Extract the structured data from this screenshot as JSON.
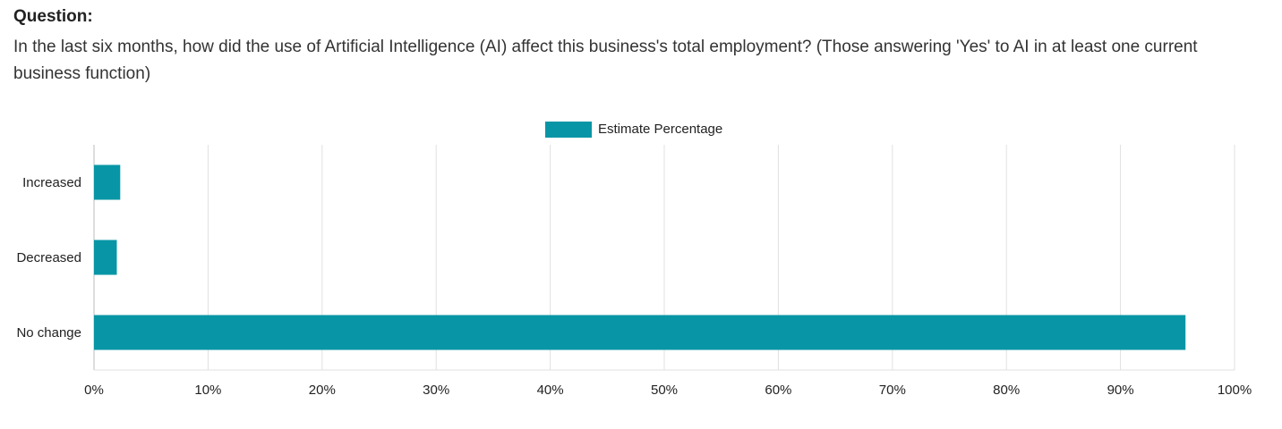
{
  "question": {
    "heading": "Question:",
    "text": "In the last six months, how did the use of Artificial Intelligence (AI) affect this business's total employment? (Those answering 'Yes' to AI in at least one current business function)"
  },
  "colors": {
    "bar": "#0896a6",
    "grid": "#e0e0e0",
    "axis": "#bbbbbb",
    "text": "#222222"
  },
  "chart_data": {
    "type": "bar",
    "orientation": "horizontal",
    "categories": [
      "Increased",
      "Decreased",
      "No change"
    ],
    "series": [
      {
        "name": "Estimate Percentage",
        "values": [
          2.3,
          2.0,
          95.7
        ]
      }
    ],
    "xlim": [
      0,
      100
    ],
    "xticks": [
      "0%",
      "10%",
      "20%",
      "30%",
      "40%",
      "50%",
      "60%",
      "70%",
      "80%",
      "90%",
      "100%"
    ],
    "grid": true,
    "legend": "top-center"
  }
}
